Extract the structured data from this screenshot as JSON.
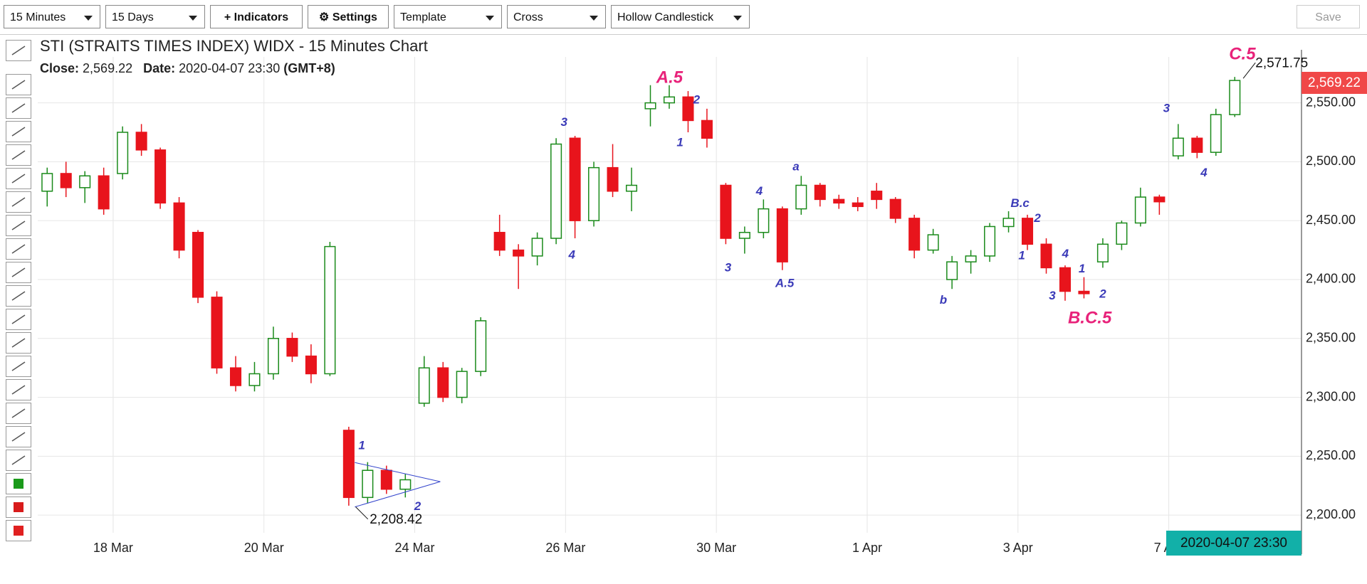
{
  "toolbar": {
    "interval": "15 Minutes",
    "range": "15 Days",
    "indicators": "+ Indicators",
    "settings": "⚙ Settings",
    "template": "Template",
    "cursor": "Cross",
    "style": "Hollow Candlestick",
    "save": "Save"
  },
  "chart_data": {
    "type": "candlestick",
    "title": "STI (STRAITS TIMES INDEX) WIDX - 15 Minutes Chart",
    "close_label": "Close:",
    "close": "2,569.22",
    "date_label": "Date:",
    "date": "2020-04-07 23:30",
    "timezone": "(GMT+8)",
    "last_price_label": "2,569.22",
    "cursor_time": "2020-04-07 23:30",
    "up_color": "#1a8a1a",
    "down_color": "#e8141c",
    "grid": true,
    "xlim": [
      0,
      16.76
    ],
    "ylim": [
      2185,
      2589
    ],
    "xticks": [
      {
        "value": 1,
        "label": "18 Mar"
      },
      {
        "value": 3,
        "label": "20 Mar"
      },
      {
        "value": 5,
        "label": "24 Mar"
      },
      {
        "value": 7,
        "label": "26 Mar"
      },
      {
        "value": 9,
        "label": "30 Mar"
      },
      {
        "value": 11,
        "label": "1 Apr"
      },
      {
        "value": 13,
        "label": "3 Apr"
      },
      {
        "value": 15,
        "label": "7 Apr"
      }
    ],
    "yticks": [
      {
        "value": 2200,
        "label": "2,200.00"
      },
      {
        "value": 2250,
        "label": "2,250.00"
      },
      {
        "value": 2300,
        "label": "2,300.00"
      },
      {
        "value": 2350,
        "label": "2,350.00"
      },
      {
        "value": 2400,
        "label": "2,400.00"
      },
      {
        "value": 2450,
        "label": "2,450.00"
      },
      {
        "value": 2500,
        "label": "2,500.00"
      },
      {
        "value": 2550,
        "label": "2,550.00"
      }
    ],
    "candles": [
      {
        "x": 0.125,
        "o": 2475,
        "h": 2495,
        "l": 2462,
        "c": 2490
      },
      {
        "x": 0.375,
        "o": 2490,
        "h": 2500,
        "l": 2470,
        "c": 2478
      },
      {
        "x": 0.625,
        "o": 2478,
        "h": 2492,
        "l": 2465,
        "c": 2488
      },
      {
        "x": 0.875,
        "o": 2488,
        "h": 2495,
        "l": 2455,
        "c": 2460
      },
      {
        "x": 1.125,
        "o": 2490,
        "h": 2530,
        "l": 2485,
        "c": 2525
      },
      {
        "x": 1.375,
        "o": 2525,
        "h": 2532,
        "l": 2505,
        "c": 2510
      },
      {
        "x": 1.625,
        "o": 2510,
        "h": 2512,
        "l": 2460,
        "c": 2465
      },
      {
        "x": 1.875,
        "o": 2465,
        "h": 2470,
        "l": 2418,
        "c": 2425
      },
      {
        "x": 2.125,
        "o": 2440,
        "h": 2442,
        "l": 2380,
        "c": 2385
      },
      {
        "x": 2.375,
        "o": 2385,
        "h": 2390,
        "l": 2320,
        "c": 2325
      },
      {
        "x": 2.625,
        "o": 2325,
        "h": 2335,
        "l": 2305,
        "c": 2310
      },
      {
        "x": 2.875,
        "o": 2310,
        "h": 2330,
        "l": 2305,
        "c": 2320
      },
      {
        "x": 3.125,
        "o": 2320,
        "h": 2360,
        "l": 2315,
        "c": 2350
      },
      {
        "x": 3.375,
        "o": 2350,
        "h": 2355,
        "l": 2330,
        "c": 2335
      },
      {
        "x": 3.625,
        "o": 2335,
        "h": 2345,
        "l": 2312,
        "c": 2320
      },
      {
        "x": 3.875,
        "o": 2320,
        "h": 2432,
        "l": 2318,
        "c": 2428
      },
      {
        "x": 4.125,
        "o": 2272,
        "h": 2275,
        "l": 2208,
        "c": 2215
      },
      {
        "x": 4.375,
        "o": 2215,
        "h": 2245,
        "l": 2210,
        "c": 2238
      },
      {
        "x": 4.625,
        "o": 2238,
        "h": 2242,
        "l": 2218,
        "c": 2222
      },
      {
        "x": 4.875,
        "o": 2222,
        "h": 2235,
        "l": 2215,
        "c": 2230
      },
      {
        "x": 5.125,
        "o": 2295,
        "h": 2335,
        "l": 2292,
        "c": 2325
      },
      {
        "x": 5.375,
        "o": 2325,
        "h": 2330,
        "l": 2296,
        "c": 2300
      },
      {
        "x": 5.625,
        "o": 2300,
        "h": 2325,
        "l": 2295,
        "c": 2322
      },
      {
        "x": 5.875,
        "o": 2322,
        "h": 2368,
        "l": 2318,
        "c": 2365
      },
      {
        "x": 6.125,
        "o": 2440,
        "h": 2455,
        "l": 2420,
        "c": 2425
      },
      {
        "x": 6.375,
        "o": 2425,
        "h": 2430,
        "l": 2392,
        "c": 2420
      },
      {
        "x": 6.625,
        "o": 2420,
        "h": 2440,
        "l": 2412,
        "c": 2435
      },
      {
        "x": 6.875,
        "o": 2435,
        "h": 2520,
        "l": 2430,
        "c": 2515
      },
      {
        "x": 7.125,
        "o": 2520,
        "h": 2522,
        "l": 2435,
        "c": 2450
      },
      {
        "x": 7.375,
        "o": 2450,
        "h": 2500,
        "l": 2445,
        "c": 2495
      },
      {
        "x": 7.625,
        "o": 2495,
        "h": 2515,
        "l": 2470,
        "c": 2475
      },
      {
        "x": 7.875,
        "o": 2475,
        "h": 2495,
        "l": 2458,
        "c": 2480
      },
      {
        "x": 8.125,
        "o": 2545,
        "h": 2565,
        "l": 2530,
        "c": 2550
      },
      {
        "x": 8.375,
        "o": 2550,
        "h": 2565,
        "l": 2545,
        "c": 2555
      },
      {
        "x": 8.625,
        "o": 2555,
        "h": 2560,
        "l": 2525,
        "c": 2535
      },
      {
        "x": 8.875,
        "o": 2535,
        "h": 2545,
        "l": 2512,
        "c": 2520
      },
      {
        "x": 9.125,
        "o": 2480,
        "h": 2482,
        "l": 2430,
        "c": 2435
      },
      {
        "x": 9.375,
        "o": 2435,
        "h": 2445,
        "l": 2422,
        "c": 2440
      },
      {
        "x": 9.625,
        "o": 2440,
        "h": 2468,
        "l": 2435,
        "c": 2460
      },
      {
        "x": 9.875,
        "o": 2460,
        "h": 2462,
        "l": 2408,
        "c": 2415
      },
      {
        "x": 10.125,
        "o": 2460,
        "h": 2488,
        "l": 2455,
        "c": 2480
      },
      {
        "x": 10.375,
        "o": 2480,
        "h": 2482,
        "l": 2462,
        "c": 2468
      },
      {
        "x": 10.625,
        "o": 2468,
        "h": 2472,
        "l": 2460,
        "c": 2465
      },
      {
        "x": 10.875,
        "o": 2465,
        "h": 2470,
        "l": 2458,
        "c": 2462
      },
      {
        "x": 11.125,
        "o": 2475,
        "h": 2482,
        "l": 2460,
        "c": 2468
      },
      {
        "x": 11.375,
        "o": 2468,
        "h": 2470,
        "l": 2448,
        "c": 2452
      },
      {
        "x": 11.625,
        "o": 2452,
        "h": 2455,
        "l": 2418,
        "c": 2425
      },
      {
        "x": 11.875,
        "o": 2425,
        "h": 2443,
        "l": 2422,
        "c": 2438
      },
      {
        "x": 12.125,
        "o": 2400,
        "h": 2420,
        "l": 2392,
        "c": 2415
      },
      {
        "x": 12.375,
        "o": 2415,
        "h": 2425,
        "l": 2405,
        "c": 2420
      },
      {
        "x": 12.625,
        "o": 2420,
        "h": 2448,
        "l": 2415,
        "c": 2445
      },
      {
        "x": 12.875,
        "o": 2445,
        "h": 2458,
        "l": 2440,
        "c": 2452
      },
      {
        "x": 13.125,
        "o": 2452,
        "h": 2455,
        "l": 2425,
        "c": 2430
      },
      {
        "x": 13.375,
        "o": 2430,
        "h": 2435,
        "l": 2405,
        "c": 2410
      },
      {
        "x": 13.625,
        "o": 2410,
        "h": 2412,
        "l": 2382,
        "c": 2390
      },
      {
        "x": 13.875,
        "o": 2390,
        "h": 2402,
        "l": 2384,
        "c": 2388
      },
      {
        "x": 14.125,
        "o": 2415,
        "h": 2435,
        "l": 2410,
        "c": 2430
      },
      {
        "x": 14.375,
        "o": 2430,
        "h": 2450,
        "l": 2425,
        "c": 2448
      },
      {
        "x": 14.625,
        "o": 2448,
        "h": 2478,
        "l": 2445,
        "c": 2470
      },
      {
        "x": 14.875,
        "o": 2470,
        "h": 2472,
        "l": 2455,
        "c": 2466
      },
      {
        "x": 15.125,
        "o": 2505,
        "h": 2532,
        "l": 2502,
        "c": 2520
      },
      {
        "x": 15.375,
        "o": 2520,
        "h": 2522,
        "l": 2503,
        "c": 2508
      },
      {
        "x": 15.625,
        "o": 2508,
        "h": 2545,
        "l": 2505,
        "c": 2540
      },
      {
        "x": 15.875,
        "o": 2540,
        "h": 2572,
        "l": 2538,
        "c": 2569
      }
    ],
    "annotations": [
      {
        "text": "1",
        "color": "#3a3ab8"
      },
      {
        "text": "2",
        "color": "#3a3ab8"
      },
      {
        "text": "3",
        "color": "#3a3ab8"
      },
      {
        "text": "4",
        "color": "#3a3ab8"
      },
      {
        "text": "A.5",
        "color": "#e8227a"
      },
      {
        "text": "2",
        "color": "#3a3ab8"
      },
      {
        "text": "1",
        "color": "#3a3ab8"
      },
      {
        "text": "3",
        "color": "#3a3ab8"
      },
      {
        "text": "4",
        "color": "#3a3ab8"
      },
      {
        "text": "A.5",
        "color": "#3a3ab8"
      },
      {
        "text": "a",
        "color": "#3a3ab8"
      },
      {
        "text": "B.c",
        "color": "#3a3ab8"
      },
      {
        "text": "2",
        "color": "#3a3ab8"
      },
      {
        "text": "1",
        "color": "#3a3ab8"
      },
      {
        "text": "b",
        "color": "#3a3ab8"
      },
      {
        "text": "4",
        "color": "#3a3ab8"
      },
      {
        "text": "1",
        "color": "#3a3ab8"
      },
      {
        "text": "3",
        "color": "#3a3ab8"
      },
      {
        "text": "2",
        "color": "#3a3ab8"
      },
      {
        "text": "B.C.5",
        "color": "#e8227a"
      },
      {
        "text": "3",
        "color": "#3a3ab8"
      },
      {
        "text": "4",
        "color": "#3a3ab8"
      },
      {
        "text": "C.5",
        "color": "#e8227a"
      }
    ],
    "low_label": "2,208.42",
    "high_label": "2,571.75"
  }
}
